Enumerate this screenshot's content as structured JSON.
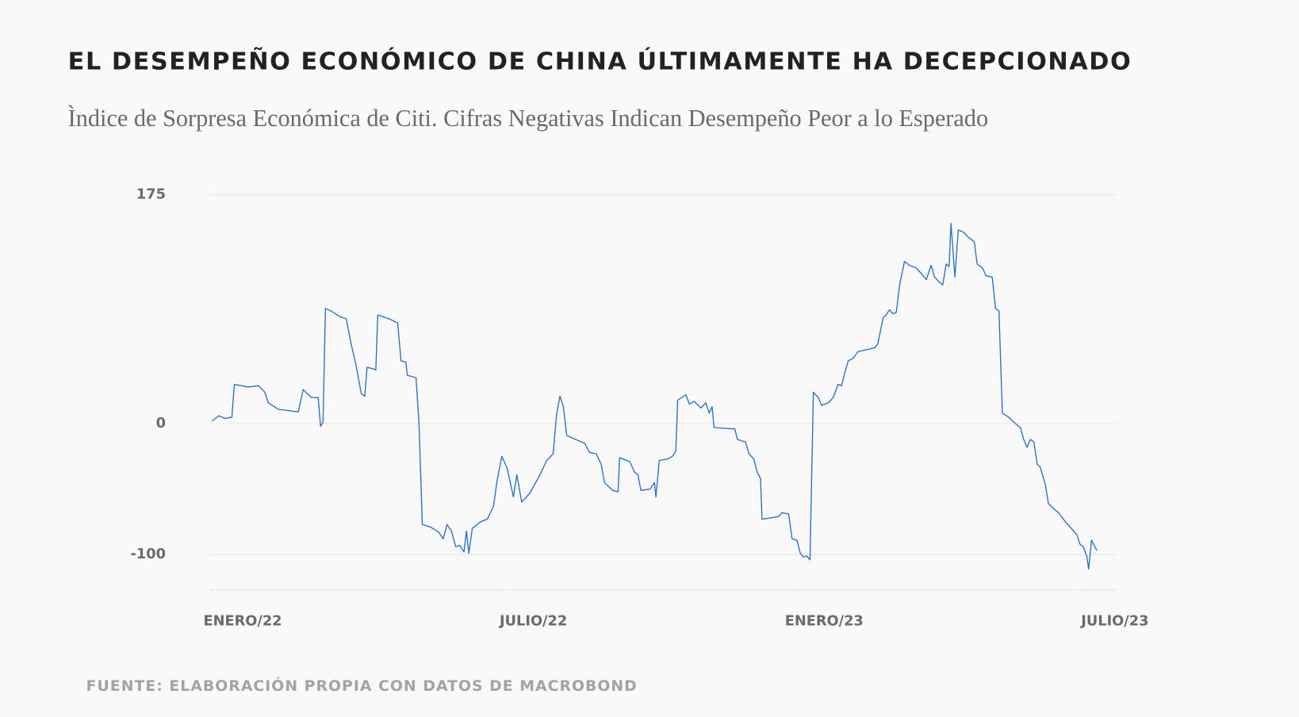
{
  "chart_data": {
    "type": "line",
    "title": "EL DESEMPEÑO ECONÓMICO DE CHINA ÚLTIMAMENTE HA DECEPCIONADO",
    "subtitle": "Ìndice de Sorpresa Económica de Citi. Cifras Negativas Indican Desempeño Peor a lo Esperado",
    "source": "FUENTE: ELABORACIÓN PROPIA CON DATOS DE MACROBOND",
    "color": "#2a6fc9",
    "x": [
      0,
      0.14,
      0.27,
      0.41,
      0.46,
      0.75,
      0.96,
      1.09,
      1.16,
      1.37,
      1.78,
      1.88,
      2.05,
      2.19,
      2.24,
      2.29,
      2.34,
      2.46,
      2.63,
      2.77,
      2.87,
      2.97,
      3.08,
      3.15,
      3.2,
      3.32,
      3.38,
      3.42,
      3.66,
      3.83,
      3.9,
      4,
      4.03,
      4.21,
      4.27,
      4.34,
      4.51,
      4.68,
      4.77,
      4.85,
      4.94,
      5.03,
      5.11,
      5.2,
      5.25,
      5.3,
      5.37,
      5.54,
      5.68,
      5.81,
      5.88,
      5.98,
      6.09,
      6.22,
      6.29,
      6.39,
      6.56,
      6.74,
      6.91,
      7.04,
      7.11,
      7.18,
      7.25,
      7.32,
      7.5,
      7.69,
      7.79,
      7.93,
      8.03,
      8.1,
      8.27,
      8.38,
      8.41,
      8.62,
      8.72,
      8.79,
      8.85,
      9.04,
      9.13,
      9.16,
      9.23,
      9.4,
      9.5,
      9.57,
      9.61,
      9.78,
      9.85,
      9.95,
      10.09,
      10.19,
      10.26,
      10.32,
      10.36,
      10.79,
      10.84,
      11.01,
      11.08,
      11.18,
      11.25,
      11.32,
      11.35,
      11.69,
      11.76,
      11.9,
      11.97,
      12.07,
      12.14,
      12.21,
      12.27,
      12.34,
      12.41,
      12.51,
      12.58,
      12.72,
      12.82,
      12.92,
      12.99,
      13.06,
      13.13,
      13.23,
      13.33,
      13.68,
      13.74,
      13.85,
      13.91,
      13.98,
      14.05,
      14.12,
      14.19,
      14.29,
      14.39,
      14.53,
      14.63,
      14.74,
      14.84,
      14.91,
      15.01,
      15.08,
      15.15,
      15.21,
      15.25,
      15.33,
      15.4,
      15.52,
      15.59,
      15.73,
      15.79,
      15.9,
      15.97,
      16.1,
      16.17,
      16.24,
      16.31,
      16.44,
      16.55,
      16.68,
      16.75,
      16.82,
      16.89,
      16.96,
      17.03,
      17.09,
      17.2,
      17.26,
      17.37,
      17.47,
      17.61,
      17.71,
      17.85,
      17.91,
      17.98,
      18.05,
      18.09,
      18.15,
      18.22,
      18.26
    ],
    "values": [
      2,
      6,
      4,
      5,
      30,
      28,
      29,
      24,
      16,
      11,
      9,
      26,
      20,
      20,
      -2,
      1,
      88,
      86,
      82,
      80,
      61,
      45,
      23,
      21,
      43,
      42,
      41,
      83,
      80,
      77,
      48,
      47,
      37,
      35,
      1,
      -77,
      -79,
      -83,
      -88,
      -77,
      -82,
      -94,
      -93,
      -98,
      -82,
      -99,
      -80,
      -75,
      -73,
      -63,
      -44,
      -25,
      -34,
      -56,
      -39,
      -60,
      -53,
      -41,
      -28,
      -23,
      7,
      21,
      13,
      -9,
      -12,
      -15,
      -22,
      -23,
      -31,
      -45,
      -51,
      -52,
      -26,
      -29,
      -37,
      -39,
      -51,
      -50,
      -45,
      -56,
      -28,
      -27,
      -25,
      -21,
      18,
      22,
      15,
      17,
      12,
      16,
      8,
      13,
      -3,
      -4,
      -12,
      -14,
      -23,
      -27,
      -37,
      -42,
      -73,
      -71,
      -68,
      -69,
      -88,
      -89,
      -99,
      -102,
      -101,
      -104,
      24,
      20,
      14,
      16,
      20,
      30,
      29,
      39,
      48,
      50,
      55,
      58,
      61,
      81,
      83,
      87,
      84,
      85,
      106,
      124,
      121,
      119,
      115,
      110,
      121,
      112,
      108,
      106,
      122,
      120,
      153,
      112,
      148,
      146,
      143,
      139,
      122,
      119,
      113,
      112,
      88,
      86,
      8,
      5,
      1,
      -3,
      -12,
      -18,
      -12,
      -14,
      -31,
      -33,
      -47,
      -61,
      -65,
      -68,
      -75,
      -79,
      -85,
      -92,
      -94,
      -101,
      -111,
      -89,
      -94,
      -97
    ],
    "xlim": [
      -0.05,
      18.67
    ],
    "xticks": [
      {
        "value": 0,
        "label": "ENERO/22"
      },
      {
        "value": 6,
        "label": "JULIO/22"
      },
      {
        "value": 12,
        "label": "ENERO/23"
      },
      {
        "value": 18,
        "label": "JULIO/23"
      }
    ],
    "ylim": [
      -127,
      176
    ],
    "yticks": [
      175,
      0,
      -100
    ],
    "grid": true
  }
}
